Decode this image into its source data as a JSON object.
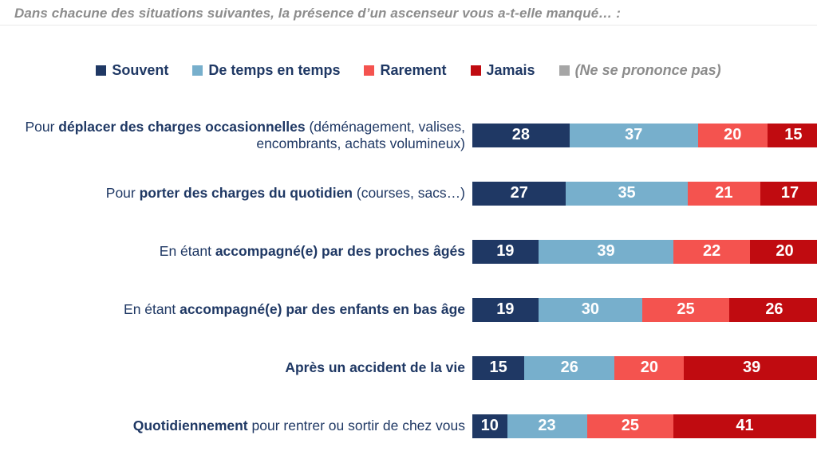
{
  "page": {
    "title": "Dans chacune des situations suivantes, la présence d’un ascenseur vous a-t-elle manqué… :"
  },
  "colors": {
    "souvent": "#1F3864",
    "de_temps_en_temps": "#77AFCC",
    "rarement": "#F4534F",
    "jamais": "#C00B10",
    "ne_se_prononce_pas": "#A6A6A6",
    "label_text": "#1F3864",
    "title_text": "#8C8C8C"
  },
  "legend": [
    {
      "label": "Souvent",
      "color": "#1F3864",
      "italic": false,
      "key": "souvent"
    },
    {
      "label": "De temps en temps",
      "color": "#77AFCC",
      "italic": false,
      "key": "de-temps-en-temps"
    },
    {
      "label": "Rarement",
      "color": "#F4534F",
      "italic": false,
      "key": "rarement"
    },
    {
      "label": "Jamais",
      "color": "#C00B10",
      "italic": false,
      "key": "jamais"
    },
    {
      "label": "(Ne se prononce pas)",
      "color": "#A6A6A6",
      "italic": true,
      "key": "ne-se-prononce-pas"
    }
  ],
  "chart_data": {
    "type": "bar",
    "orientation": "horizontal_stacked",
    "title": "Dans chacune des situations suivantes, la présence d’un ascenseur vous a-t-elle manqué… :",
    "legend_position": "top_center",
    "xlim": [
      0,
      100
    ],
    "series_names": [
      "Souvent",
      "De temps en temps",
      "Rarement",
      "Jamais"
    ],
    "series_keys": [
      "souvent",
      "de-temps-en-temps",
      "rarement",
      "jamais"
    ],
    "series_colors": [
      "#1F3864",
      "#77AFCC",
      "#F4534F",
      "#C00B10"
    ],
    "categories": [
      "Pour déplacer des charges occasionnelles (déménagement, valises, encombrants, achats volumineux)",
      "Pour porter des charges du quotidien (courses, sacs…)",
      "En étant accompagné(e) par des proches âgés",
      "En étant accompagné(e) par des enfants en bas âge",
      "Après un accident de la vie",
      "Quotidiennement pour rentrer ou sortir de chez vous"
    ],
    "rows": [
      {
        "label_parts": [
          {
            "text": "Pour ",
            "bold": false
          },
          {
            "text": "déplacer des charges occasionnelles",
            "bold": true
          },
          {
            "text": " (déménagement, valises, encombrants, achats volumineux)",
            "bold": false
          }
        ],
        "values": [
          28,
          37,
          20,
          15
        ]
      },
      {
        "label_parts": [
          {
            "text": "Pour ",
            "bold": false
          },
          {
            "text": "porter des charges du quotidien",
            "bold": true
          },
          {
            "text": " (courses, sacs…)",
            "bold": false
          }
        ],
        "values": [
          27,
          35,
          21,
          17
        ]
      },
      {
        "label_parts": [
          {
            "text": "En étant ",
            "bold": false
          },
          {
            "text": "accompagné(e) par des proches âgés",
            "bold": true
          }
        ],
        "values": [
          19,
          39,
          22,
          20
        ]
      },
      {
        "label_parts": [
          {
            "text": "En étant ",
            "bold": false
          },
          {
            "text": "accompagné(e) par des enfants en bas âge",
            "bold": true
          }
        ],
        "values": [
          19,
          30,
          25,
          26
        ]
      },
      {
        "label_parts": [
          {
            "text": "Après un accident de la vie",
            "bold": true
          }
        ],
        "values": [
          15,
          26,
          20,
          39
        ]
      },
      {
        "label_parts": [
          {
            "text": "Quotidiennement",
            "bold": true
          },
          {
            "text": " pour rentrer ou sortir de chez vous",
            "bold": false
          }
        ],
        "values": [
          10,
          23,
          25,
          41
        ]
      }
    ]
  }
}
